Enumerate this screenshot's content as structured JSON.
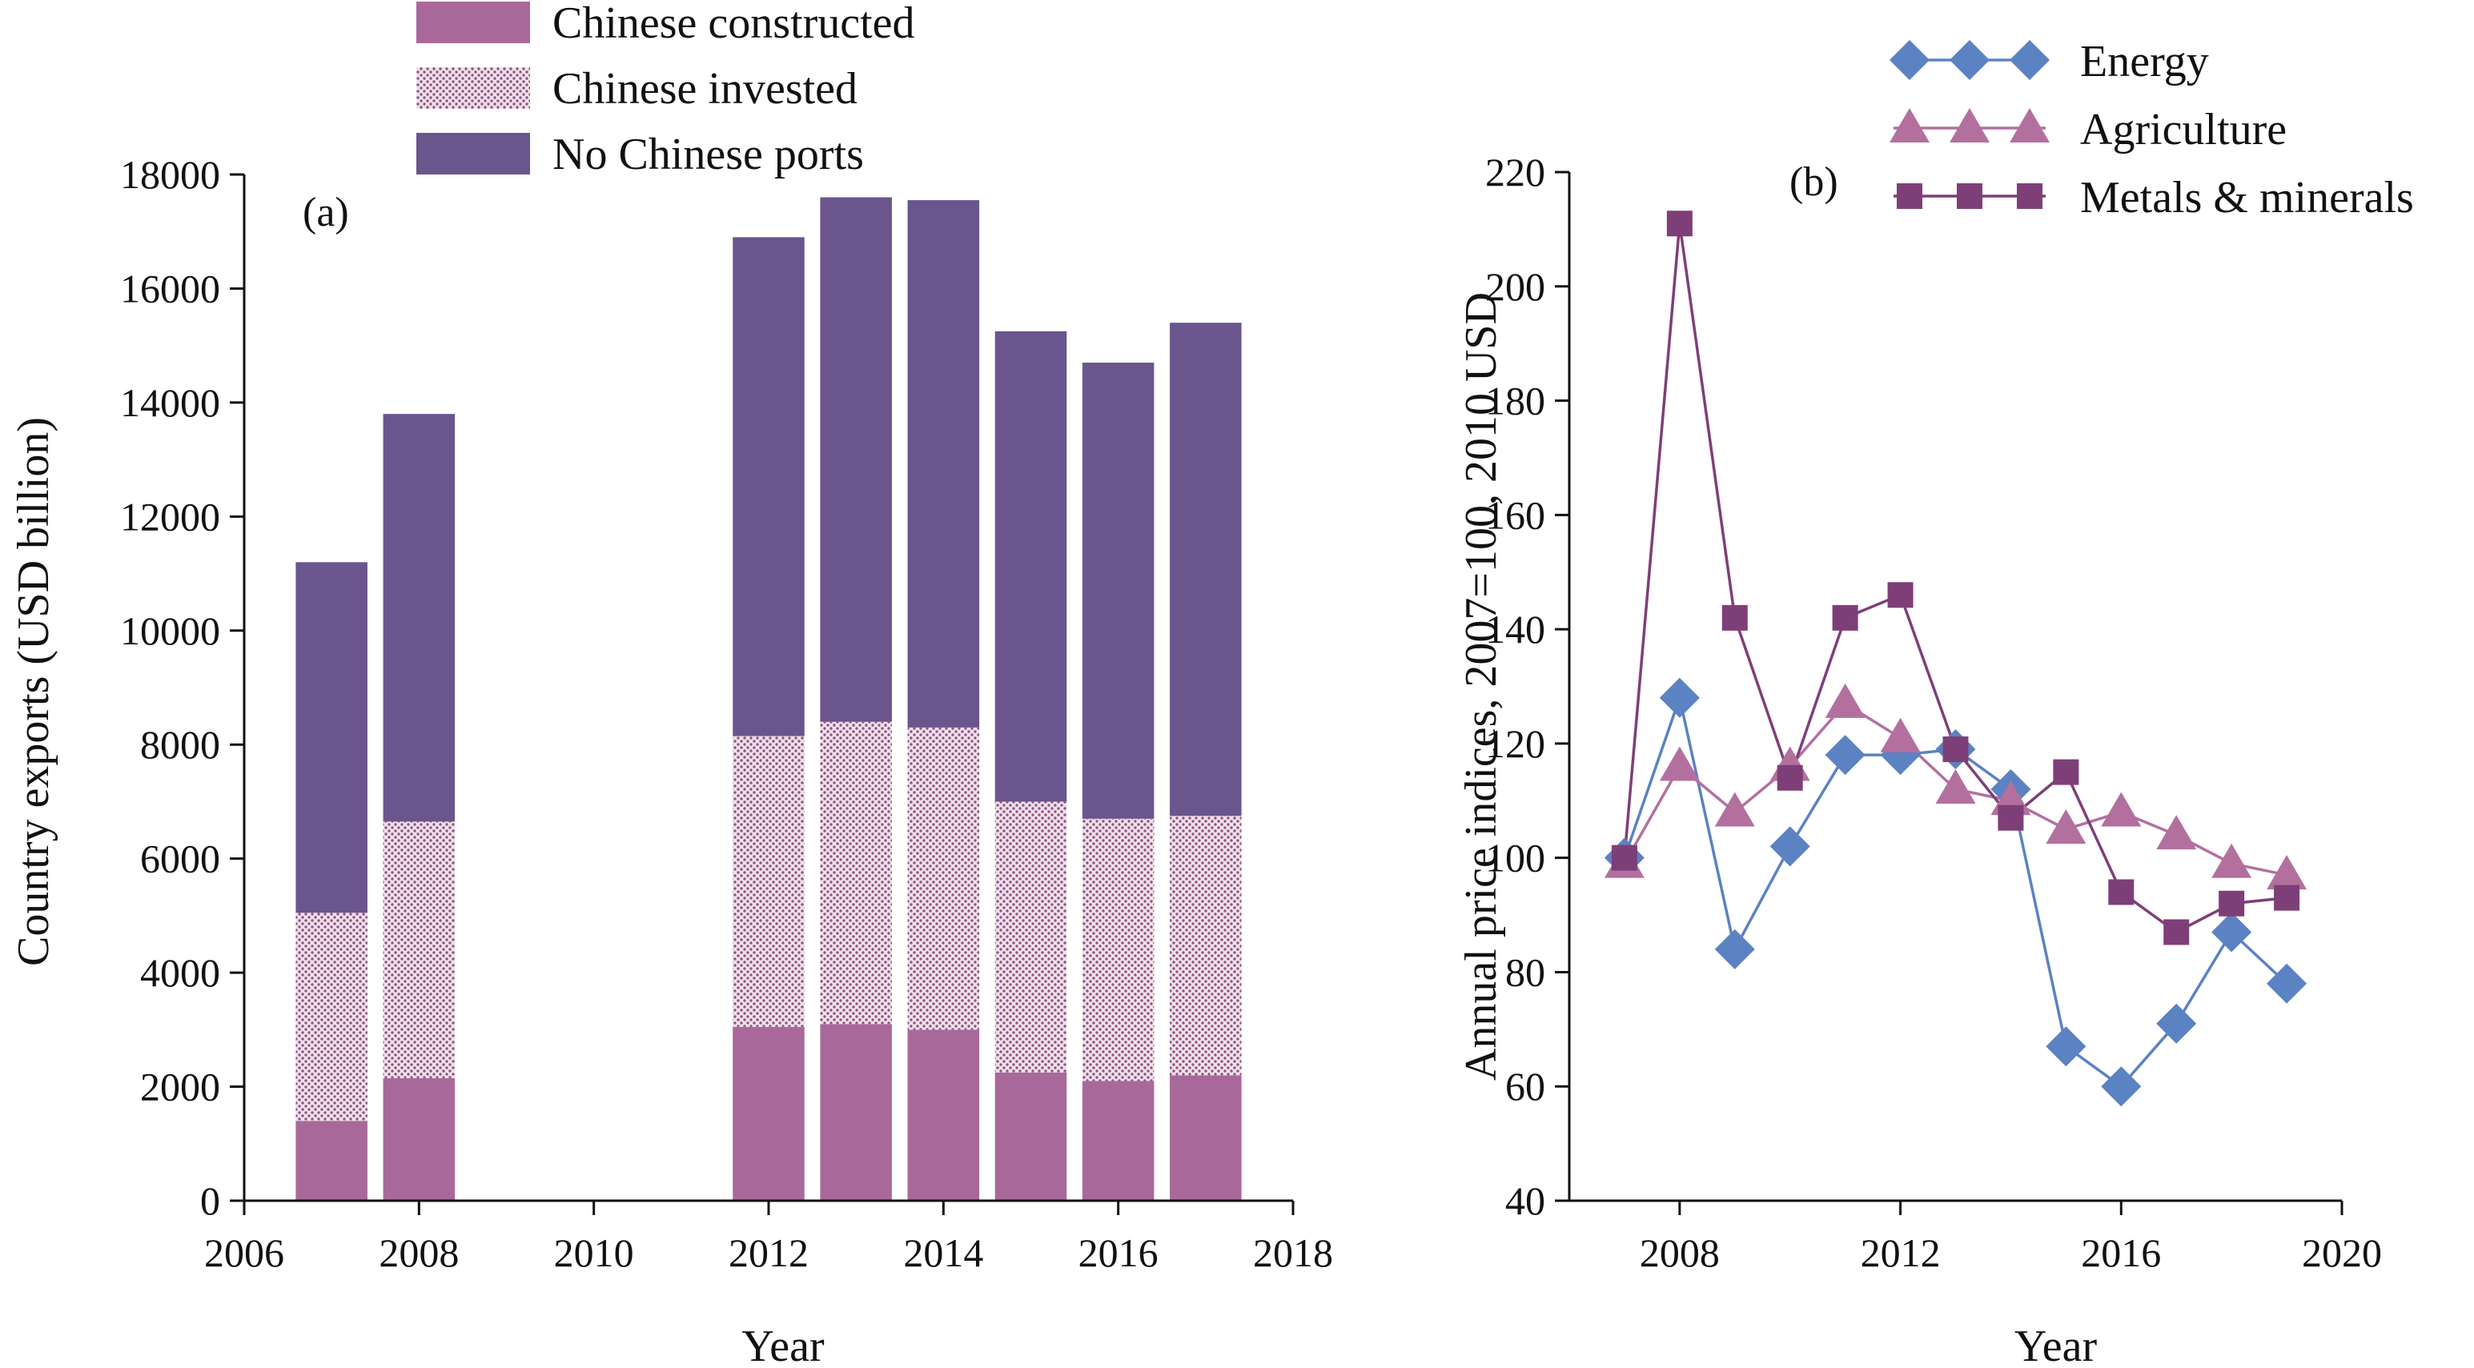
{
  "chart_data": [
    {
      "type": "bar",
      "stacked": true,
      "panel_label": "(a)",
      "xlabel": "Year",
      "ylabel": "Country exports (USD billion)",
      "xlim": [
        2006,
        2018
      ],
      "ylim": [
        0,
        18000
      ],
      "xticks": [
        2006,
        2008,
        2010,
        2012,
        2014,
        2016,
        2018
      ],
      "yticks": [
        0,
        2000,
        4000,
        6000,
        8000,
        10000,
        12000,
        14000,
        16000,
        18000
      ],
      "x": [
        2007,
        2008,
        2012,
        2013,
        2014,
        2015,
        2016,
        2017
      ],
      "series": [
        {
          "name": "Chinese constructed",
          "color": "#a8699a",
          "pattern": "solid",
          "values": [
            1400,
            2150,
            3050,
            3100,
            3000,
            2250,
            2100,
            2200
          ]
        },
        {
          "name": "Chinese invested",
          "color": "#a8699a",
          "pattern": "dotted",
          "values": [
            3650,
            4500,
            5100,
            5300,
            5300,
            4750,
            4600,
            4550
          ]
        },
        {
          "name": "No Chinese ports",
          "color": "#6a558c",
          "pattern": "solid",
          "values": [
            6150,
            7150,
            8750,
            9200,
            9250,
            8250,
            8000,
            8650
          ]
        }
      ],
      "legend_position": "top-center"
    },
    {
      "type": "line",
      "panel_label": "(b)",
      "xlabel": "Year",
      "ylabel": "Annual price indices, 2007=100, 2010 USD",
      "xlim": [
        2006,
        2020
      ],
      "ylim": [
        40,
        220
      ],
      "xticks": [
        2008,
        2012,
        2016,
        2020
      ],
      "yticks": [
        40,
        60,
        80,
        100,
        120,
        140,
        160,
        180,
        200,
        220
      ],
      "x": [
        2007,
        2008,
        2009,
        2010,
        2011,
        2012,
        2013,
        2014,
        2015,
        2016,
        2017,
        2018,
        2019
      ],
      "series": [
        {
          "name": "Energy",
          "color": "#5b82c2",
          "marker": "diamond",
          "values": [
            100,
            128,
            84,
            102,
            118,
            118,
            119,
            112,
            67,
            60,
            71,
            87,
            78
          ]
        },
        {
          "name": "Agriculture",
          "color": "#b3709f",
          "marker": "triangle",
          "values": [
            99,
            116,
            108,
            116,
            127,
            121,
            112,
            110,
            105,
            108,
            104,
            99,
            97
          ]
        },
        {
          "name": "Metals & minerals",
          "color": "#7e3f78",
          "marker": "square",
          "values": [
            100,
            211,
            142,
            114,
            142,
            146,
            119,
            107,
            115,
            94,
            87,
            92,
            93
          ]
        }
      ],
      "legend_position": "top-right"
    }
  ]
}
